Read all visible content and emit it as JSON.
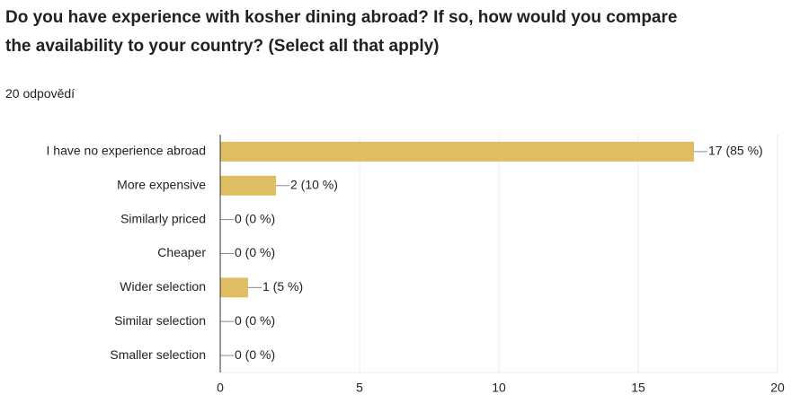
{
  "chart_data": {
    "type": "bar",
    "title": "Do you have experience with kosher dining abroad? If so, how would you compare the availability to your country? (Select all that apply)",
    "subtitle": "20 odpovědí",
    "categories": [
      "I have no experience abroad",
      "More expensive",
      "Similarly priced",
      "Cheaper",
      "Wider selection",
      "Similar selection",
      "Smaller selection"
    ],
    "values": [
      17,
      2,
      0,
      0,
      1,
      0,
      0
    ],
    "value_labels": [
      "17 (85 %)",
      "2 (10 %)",
      "0 (0 %)",
      "0 (0 %)",
      "1 (5 %)",
      "0 (0 %)",
      "0 (0 %)"
    ],
    "color": "#dfbe63",
    "xlim": [
      0,
      20
    ],
    "xticks": [
      0,
      5,
      10,
      15,
      20
    ],
    "grid": true
  }
}
